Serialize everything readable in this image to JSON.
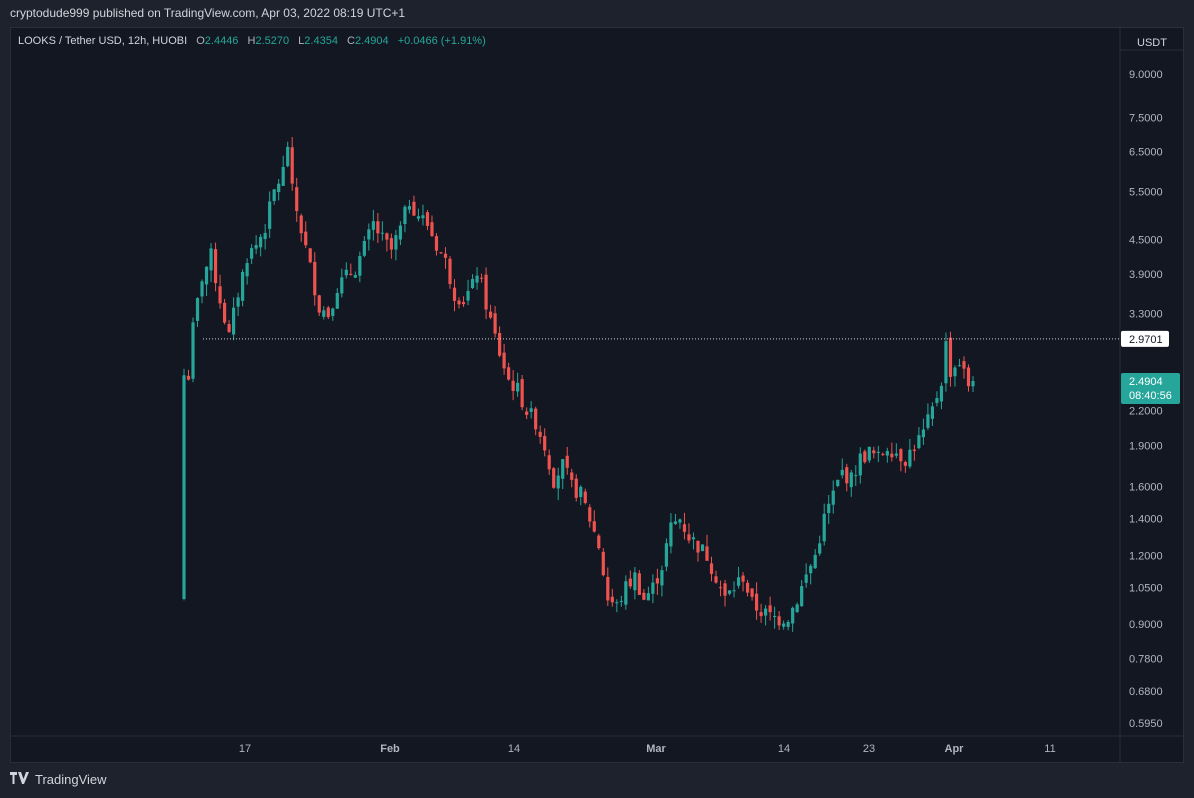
{
  "header": {
    "published_text": "cryptodude999 published on TradingView.com, Apr 03, 2022 08:19 UTC+1"
  },
  "legend": {
    "symbol": "LOOKS / Tether USD, 12h, HUOBI",
    "o_label": "O",
    "o_value": "2.4446",
    "h_label": "H",
    "h_value": "2.5270",
    "l_label": "L",
    "l_value": "2.4354",
    "c_label": "C",
    "c_value": "2.4904",
    "change": "+0.0466 (+1.91%)"
  },
  "price_axis": {
    "currency": "USDT"
  },
  "markers": {
    "line_price": "2.9701",
    "last_price": "2.4904",
    "countdown": "08:40:56"
  },
  "colors": {
    "up": "#26a69a",
    "down": "#ef5350",
    "background": "#131722",
    "grid": "#2a2e39",
    "text": "#b2b5be"
  },
  "footer": {
    "brand": "TradingView",
    "logo_icon": "tradingview-logo-icon"
  },
  "chart_data": {
    "type": "candlestick",
    "title": "LOOKS / Tether USD, 12h, HUOBI",
    "y_scale": "log",
    "y_ticks": [
      "9.0000",
      "7.5000",
      "6.5000",
      "5.5000",
      "4.5000",
      "3.9000",
      "3.3000",
      "2.2000",
      "1.9000",
      "1.6000",
      "1.4000",
      "1.2000",
      "1.0500",
      "0.9000",
      "0.7800",
      "0.6800",
      "0.5950"
    ],
    "x_ticks": [
      "17",
      "Feb",
      "14",
      "Mar",
      "14",
      "23",
      "Apr",
      "11"
    ],
    "horizontal_line": 2.9701,
    "last_close": 2.4904,
    "close_path": [
      [
        0,
        1.0
      ],
      [
        1,
        2.55
      ],
      [
        2,
        3.1
      ],
      [
        4,
        3.85
      ],
      [
        6,
        4.2
      ],
      [
        8,
        3.5
      ],
      [
        10,
        3.0
      ],
      [
        12,
        3.6
      ],
      [
        14,
        4.2
      ],
      [
        16,
        4.4
      ],
      [
        18,
        4.75
      ],
      [
        20,
        5.5
      ],
      [
        22,
        6.0
      ],
      [
        23,
        6.7
      ],
      [
        24,
        5.5
      ],
      [
        26,
        4.7
      ],
      [
        28,
        4.0
      ],
      [
        30,
        3.4
      ],
      [
        32,
        3.3
      ],
      [
        34,
        3.7
      ],
      [
        36,
        3.85
      ],
      [
        38,
        4.0
      ],
      [
        40,
        4.35
      ],
      [
        42,
        4.8
      ],
      [
        44,
        4.5
      ],
      [
        46,
        4.3
      ],
      [
        48,
        4.7
      ],
      [
        50,
        5.3
      ],
      [
        52,
        5.0
      ],
      [
        54,
        4.8
      ],
      [
        56,
        4.4
      ],
      [
        58,
        4.1
      ],
      [
        60,
        3.6
      ],
      [
        62,
        3.5
      ],
      [
        64,
        3.7
      ],
      [
        65,
        3.95
      ],
      [
        66,
        3.7
      ],
      [
        68,
        3.2
      ],
      [
        70,
        2.8
      ],
      [
        72,
        2.5
      ],
      [
        74,
        2.4
      ],
      [
        76,
        2.2
      ],
      [
        78,
        2.1
      ],
      [
        80,
        1.9
      ],
      [
        82,
        1.65
      ],
      [
        84,
        1.75
      ],
      [
        86,
        1.6
      ],
      [
        88,
        1.55
      ],
      [
        90,
        1.4
      ],
      [
        92,
        1.25
      ],
      [
        94,
        1.0
      ],
      [
        96,
        0.97
      ],
      [
        98,
        1.05
      ],
      [
        100,
        1.1
      ],
      [
        102,
        1.0
      ],
      [
        104,
        1.05
      ],
      [
        106,
        1.15
      ],
      [
        108,
        1.35
      ],
      [
        110,
        1.4
      ],
      [
        112,
        1.3
      ],
      [
        114,
        1.25
      ],
      [
        116,
        1.2
      ],
      [
        118,
        1.1
      ],
      [
        120,
        1.0
      ],
      [
        122,
        1.05
      ],
      [
        124,
        1.1
      ],
      [
        126,
        0.98
      ],
      [
        128,
        0.95
      ],
      [
        130,
        0.93
      ],
      [
        132,
        0.92
      ],
      [
        134,
        0.93
      ],
      [
        136,
        1.0
      ],
      [
        138,
        1.1
      ],
      [
        140,
        1.2
      ],
      [
        142,
        1.4
      ],
      [
        144,
        1.55
      ],
      [
        146,
        1.7
      ],
      [
        148,
        1.65
      ],
      [
        150,
        1.8
      ],
      [
        152,
        1.85
      ],
      [
        154,
        1.8
      ],
      [
        156,
        1.9
      ],
      [
        158,
        1.85
      ],
      [
        160,
        1.8
      ],
      [
        162,
        1.9
      ],
      [
        164,
        2.0
      ],
      [
        166,
        2.2
      ],
      [
        168,
        2.5
      ],
      [
        169,
        2.9
      ],
      [
        170,
        2.6
      ],
      [
        172,
        2.7
      ],
      [
        174,
        2.45
      ],
      [
        175,
        2.49
      ]
    ]
  }
}
